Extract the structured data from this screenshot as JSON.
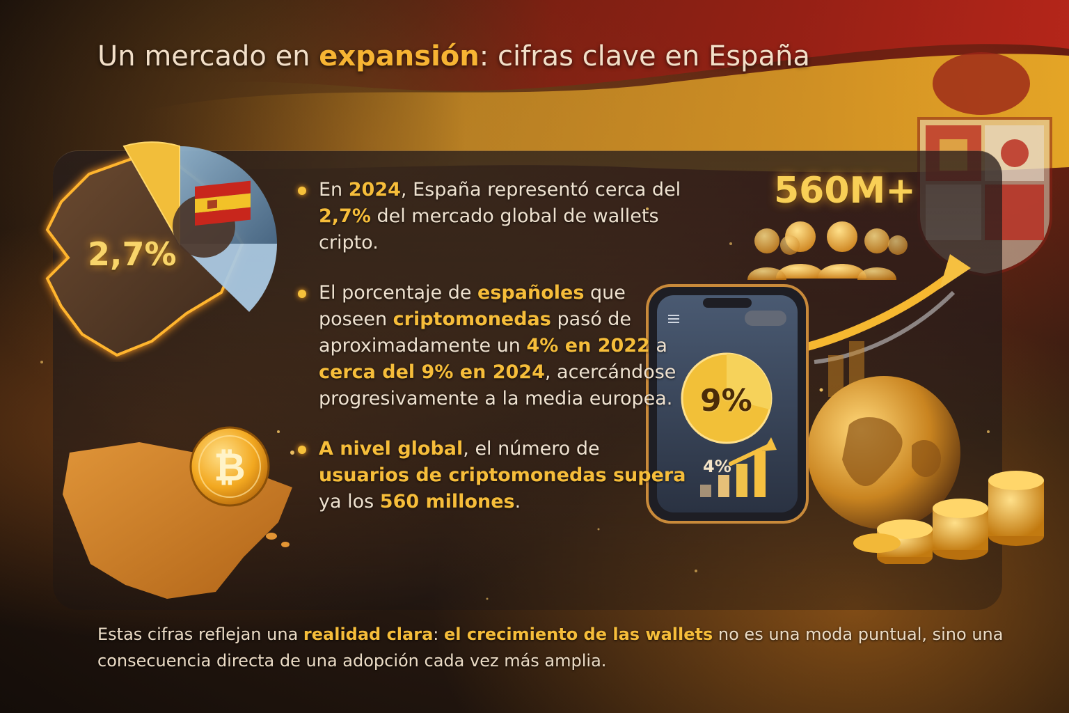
{
  "title": {
    "part1": "Un mercado en ",
    "highlight": "expansión",
    "part2": ": cifras clave en España"
  },
  "colors": {
    "accent": "#f6bd3a",
    "text": "#efe2d0",
    "flag_red": "#b8261a",
    "flag_yellow": "#f2b428"
  },
  "visuals": {
    "pie_label": "2,7%",
    "big_number": "560M+",
    "phone_pct": "9%",
    "phone_small": "4%"
  },
  "bullets": [
    {
      "segments": [
        {
          "text": "En ",
          "hl": false
        },
        {
          "text": "2024",
          "hl": true
        },
        {
          "text": ", España representó cerca del ",
          "hl": false
        },
        {
          "text": "2,7%",
          "hl": true
        },
        {
          "text": " del mercado global de wallets cripto.",
          "hl": false
        }
      ]
    },
    {
      "segments": [
        {
          "text": "El porcentaje de ",
          "hl": false
        },
        {
          "text": "españoles",
          "hl": true
        },
        {
          "text": " que poseen ",
          "hl": false
        },
        {
          "text": "criptomonedas",
          "hl": true
        },
        {
          "text": " pasó de aproximadamente un ",
          "hl": false
        },
        {
          "text": "4% en 2022",
          "hl": true
        },
        {
          "text": " a ",
          "hl": false
        },
        {
          "text": "cerca del 9% en 2024",
          "hl": true
        },
        {
          "text": ", acercándose progresivamente a la media europea.",
          "hl": false
        }
      ]
    },
    {
      "segments": [
        {
          "text": "A nivel global",
          "hl": true
        },
        {
          "text": ", el número de ",
          "hl": false
        },
        {
          "text": "usuarios de criptomonedas supera",
          "hl": true
        },
        {
          "text": " ya los ",
          "hl": false
        },
        {
          "text": "560 millones",
          "hl": true
        },
        {
          "text": ".",
          "hl": false
        }
      ]
    }
  ],
  "footer": {
    "segments": [
      {
        "text": "Estas cifras reflejan una ",
        "hl": false
      },
      {
        "text": "realidad clara",
        "hl": true
      },
      {
        "text": ": ",
        "hl": false
      },
      {
        "text": "el crecimiento de las wallets",
        "hl": true
      },
      {
        "text": " no es una moda puntual, sino una consecuencia directa de una adopción cada vez más amplia.",
        "hl": false
      }
    ]
  },
  "icons": [
    "spain-flag-icon",
    "bitcoin-coin-icon",
    "globe-icon",
    "people-icon",
    "growth-arrow-icon",
    "smartphone-icon",
    "coin-stack-icon"
  ]
}
